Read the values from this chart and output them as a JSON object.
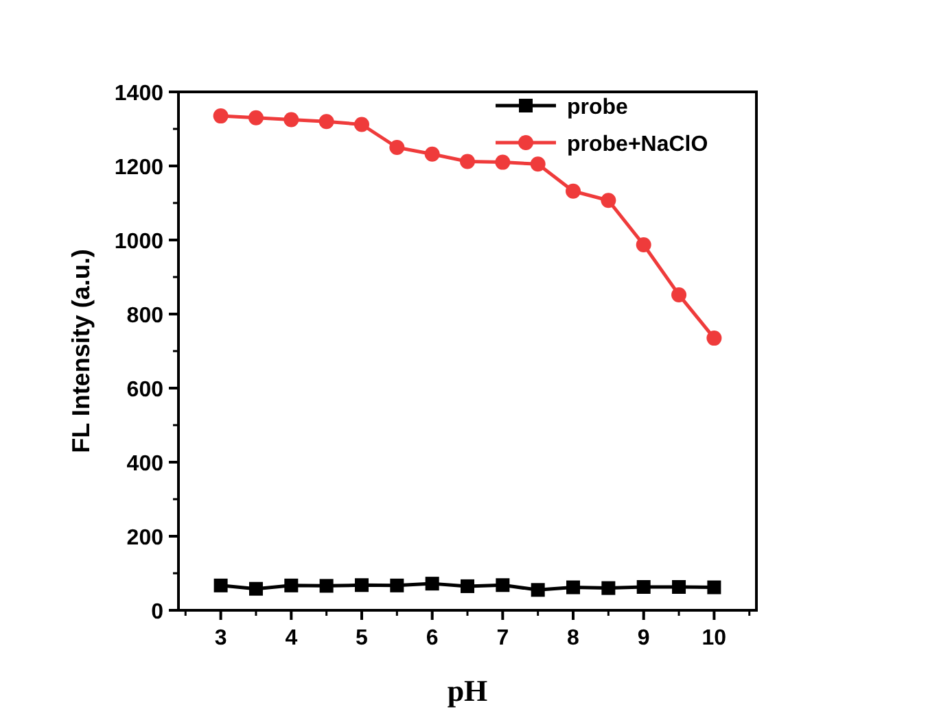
{
  "chart_data": {
    "type": "line",
    "xlabel": "pH",
    "ylabel": "FL Intensity (a.u.)",
    "x": [
      3,
      3.5,
      4,
      4.5,
      5,
      5.5,
      6,
      6.5,
      7,
      7.5,
      8,
      8.5,
      9,
      9.5,
      10
    ],
    "series": [
      {
        "name": "probe",
        "color": "#000000",
        "marker": "square",
        "values": [
          67,
          58,
          67,
          66,
          68,
          67,
          72,
          65,
          68,
          55,
          62,
          60,
          63,
          63,
          62
        ]
      },
      {
        "name": "probe+NaClO",
        "color": "#ef3b3b",
        "marker": "circle",
        "values": [
          1335,
          1330,
          1325,
          1320,
          1312,
          1250,
          1232,
          1212,
          1210,
          1205,
          1132,
          1107,
          987,
          852,
          735
        ]
      }
    ],
    "xlim": [
      2.4,
      10.6
    ],
    "xticks": [
      3,
      4,
      5,
      6,
      7,
      8,
      9,
      10
    ],
    "ylim": [
      0,
      1400
    ],
    "yticks": [
      0,
      200,
      400,
      600,
      800,
      1000,
      1200,
      1400
    ],
    "grid": false,
    "legend": "top right"
  }
}
